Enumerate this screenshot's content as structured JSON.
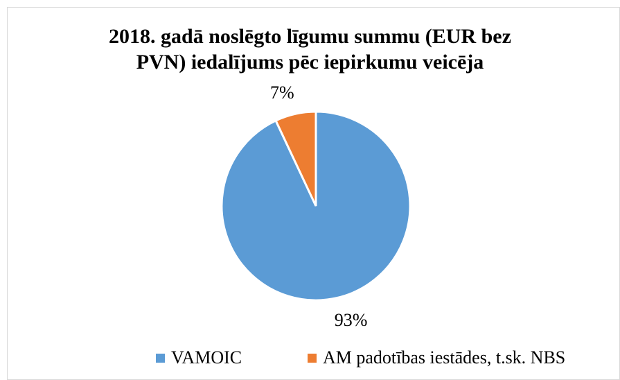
{
  "chart_data": {
    "type": "pie",
    "title": "2018. gadā noslēgto līgumu summu (EUR bez PVN) iedalījums pēc iepirkumu veicēja",
    "categories": [
      "VAMOIC",
      "AM padotības iestādes, t.sk. NBS"
    ],
    "values": [
      93,
      7
    ],
    "value_labels": [
      "93%",
      "7%"
    ],
    "colors": [
      "#5b9bd5",
      "#ed7d31"
    ],
    "legend": "bottom"
  }
}
